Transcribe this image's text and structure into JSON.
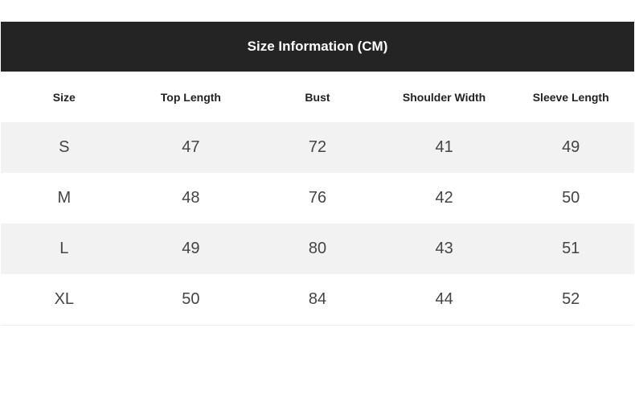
{
  "title": "Size Information (CM)",
  "headers": [
    "Size",
    "Top Length",
    "Bust",
    "Shoulder Width",
    "Sleeve Length"
  ],
  "rows": [
    [
      "S",
      "47",
      "72",
      "41",
      "49"
    ],
    [
      "M",
      "48",
      "76",
      "42",
      "50"
    ],
    [
      "L",
      "49",
      "80",
      "43",
      "51"
    ],
    [
      "XL",
      "50",
      "84",
      "44",
      "52"
    ]
  ]
}
